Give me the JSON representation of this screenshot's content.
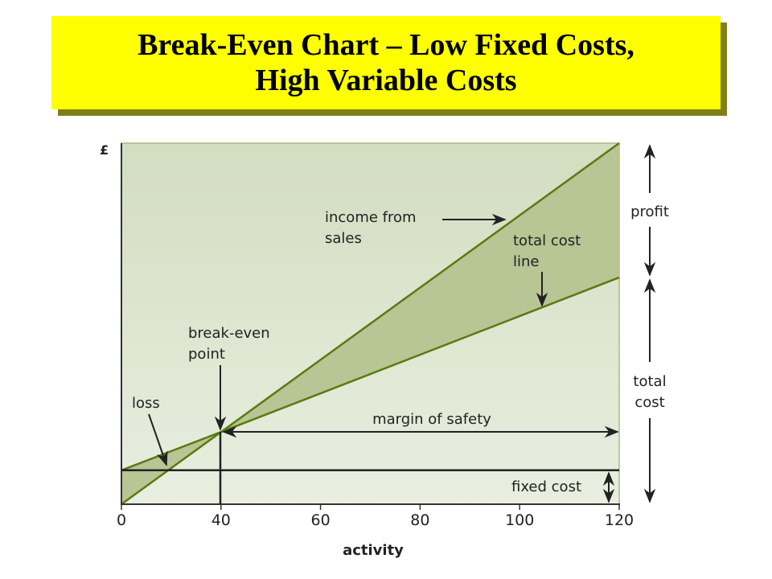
{
  "title": {
    "line1": "Break-Even Chart – Low Fixed Costs,",
    "line2": "High Variable Costs"
  },
  "colors": {
    "title_bg": "#ffff00",
    "title_shadow": "#7f7f1a",
    "line": "#5a7a10",
    "shade": "#b8c594",
    "plot_top": "#d3ddc0",
    "plot_bottom": "#e9eee0"
  },
  "chart_data": {
    "type": "line",
    "title": "Break-Even Chart – Low Fixed Costs, High Variable Costs",
    "xlabel": "activity",
    "ylabel": "£",
    "x_ticks": [
      "0",
      "40",
      "60",
      "80",
      "100",
      "120"
    ],
    "x": [
      0,
      40,
      60,
      80,
      100,
      120
    ],
    "ylim": [
      0,
      100
    ],
    "grid": false,
    "series": [
      {
        "name": "income from sales",
        "values": [
          0,
          20,
          40,
          60,
          80,
          100
        ]
      },
      {
        "name": "total cost line",
        "values": [
          9.4,
          20,
          30.7,
          41.4,
          52.1,
          62.8
        ]
      },
      {
        "name": "fixed cost",
        "values": [
          9.4,
          9.4,
          9.4,
          9.4,
          9.4,
          9.4
        ]
      }
    ],
    "break_even": {
      "activity": 40,
      "value": 20
    },
    "annotations": {
      "income": [
        "income from",
        "sales"
      ],
      "total_cost_line": [
        "total cost",
        "line"
      ],
      "break_even": [
        "break-even",
        "point"
      ],
      "loss": "loss",
      "margin_of_safety": "margin of safety",
      "fixed_cost": "fixed cost",
      "profit": "profit",
      "total_cost": [
        "total",
        "cost"
      ]
    }
  }
}
